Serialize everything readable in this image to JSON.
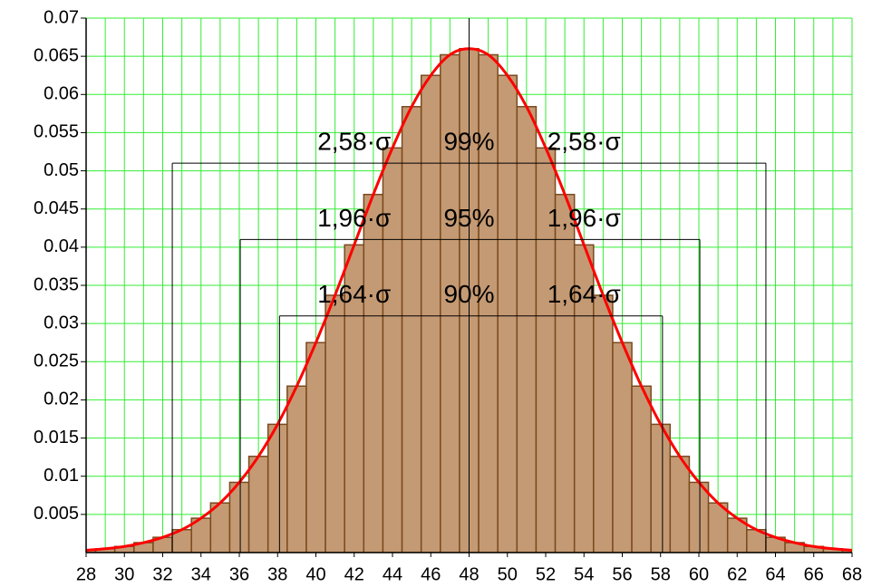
{
  "chart_data": {
    "type": "histogram",
    "x": [
      28,
      29,
      30,
      31,
      32,
      33,
      34,
      35,
      36,
      37,
      38,
      39,
      40,
      41,
      42,
      43,
      44,
      45,
      46,
      47,
      48,
      49,
      50,
      51,
      52,
      53,
      54,
      55,
      56,
      57,
      58,
      59,
      60,
      61,
      62,
      63,
      64,
      65,
      66,
      67,
      68
    ],
    "series": [
      {
        "type": "bar",
        "color": "#c49a74",
        "edge_color": "#7a4a1e",
        "values": [
          0.0003,
          0.0005,
          0.0008,
          0.0013,
          0.002,
          0.003,
          0.0045,
          0.0065,
          0.0092,
          0.0126,
          0.0168,
          0.0218,
          0.0275,
          0.0337,
          0.0403,
          0.0469,
          0.053,
          0.0584,
          0.0625,
          0.0652,
          0.066,
          0.0652,
          0.0625,
          0.0584,
          0.053,
          0.0469,
          0.0403,
          0.0337,
          0.0275,
          0.0218,
          0.0168,
          0.0126,
          0.0092,
          0.0065,
          0.0045,
          0.003,
          0.002,
          0.0013,
          0.0008,
          0.0005,
          0.0003
        ]
      },
      {
        "type": "line",
        "color": "#ff0000",
        "values": [
          0.0003,
          0.0005,
          0.0008,
          0.0013,
          0.002,
          0.003,
          0.0045,
          0.0065,
          0.0092,
          0.0126,
          0.0168,
          0.0218,
          0.0275,
          0.0337,
          0.0403,
          0.0469,
          0.053,
          0.0584,
          0.0625,
          0.0652,
          0.066,
          0.0652,
          0.0625,
          0.0584,
          0.053,
          0.0469,
          0.0403,
          0.0337,
          0.0275,
          0.0218,
          0.0168,
          0.0126,
          0.0092,
          0.0065,
          0.0045,
          0.003,
          0.002,
          0.0013,
          0.0008,
          0.0005,
          0.0003
        ]
      }
    ],
    "xlim": [
      28,
      68
    ],
    "xticks": [
      28,
      30,
      32,
      34,
      36,
      38,
      40,
      42,
      44,
      46,
      48,
      50,
      52,
      54,
      56,
      58,
      60,
      62,
      64,
      66,
      68
    ],
    "ylim": [
      0,
      0.07
    ],
    "yticks": [
      0.005,
      0.01,
      0.015,
      0.02,
      0.025,
      0.03,
      0.035,
      0.04,
      0.045,
      0.05,
      0.055,
      0.06,
      0.065,
      0.07
    ],
    "grid": true,
    "grid_color": "#33ee33",
    "center_line": 48,
    "intervals": [
      {
        "left_label": "2,58·σ",
        "center_label": "99%",
        "right_label": "2,58·σ",
        "x": [
          32.5,
          63.5
        ],
        "y": 0.051
      },
      {
        "left_label": "1,96·σ",
        "center_label": "95%",
        "right_label": "1,96·σ",
        "x": [
          36.05,
          60.05
        ],
        "y": 0.041
      },
      {
        "left_label": "1,64·σ",
        "center_label": "90%",
        "right_label": "1,64·σ",
        "x": [
          38.1,
          58.1
        ],
        "y": 0.031
      }
    ]
  }
}
